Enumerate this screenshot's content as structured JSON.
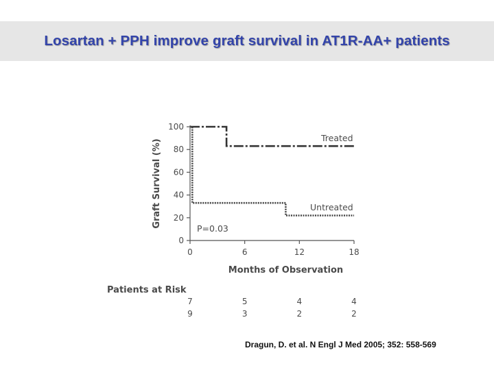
{
  "slide": {
    "title": "Losartan + PPH improve graft survival in AT1R-AA+ patients",
    "citation": "Dragun, D. et al. N Engl J Med 2005; 352: 558-569"
  },
  "chart_data": {
    "type": "line",
    "title": "",
    "xlabel": "Months of Observation",
    "ylabel": "Graft Survival (%)",
    "xlim": [
      0,
      18
    ],
    "ylim": [
      0,
      100
    ],
    "xticks": [
      0,
      6,
      12,
      18
    ],
    "yticks": [
      0,
      20,
      40,
      60,
      80,
      100
    ],
    "step": true,
    "series": [
      {
        "name": "Treated",
        "style": "dash-dot",
        "points": [
          [
            0,
            100
          ],
          [
            4,
            100
          ],
          [
            4,
            83
          ],
          [
            18,
            83
          ]
        ]
      },
      {
        "name": "Untreated",
        "style": "dotted",
        "points": [
          [
            0,
            100
          ],
          [
            0.25,
            100
          ],
          [
            0.25,
            33
          ],
          [
            10.5,
            33
          ],
          [
            10.5,
            22
          ],
          [
            18,
            22
          ]
        ]
      }
    ],
    "annotations": [
      "P=0.03"
    ],
    "risk_table": {
      "label": "Patients at Risk",
      "times": [
        0,
        6,
        12,
        18
      ],
      "rows": [
        {
          "series": "Treated",
          "values": [
            "7",
            "5",
            "4",
            "4"
          ]
        },
        {
          "series": "Untreated",
          "values": [
            "9",
            "3",
            "2",
            "2"
          ]
        }
      ]
    }
  }
}
